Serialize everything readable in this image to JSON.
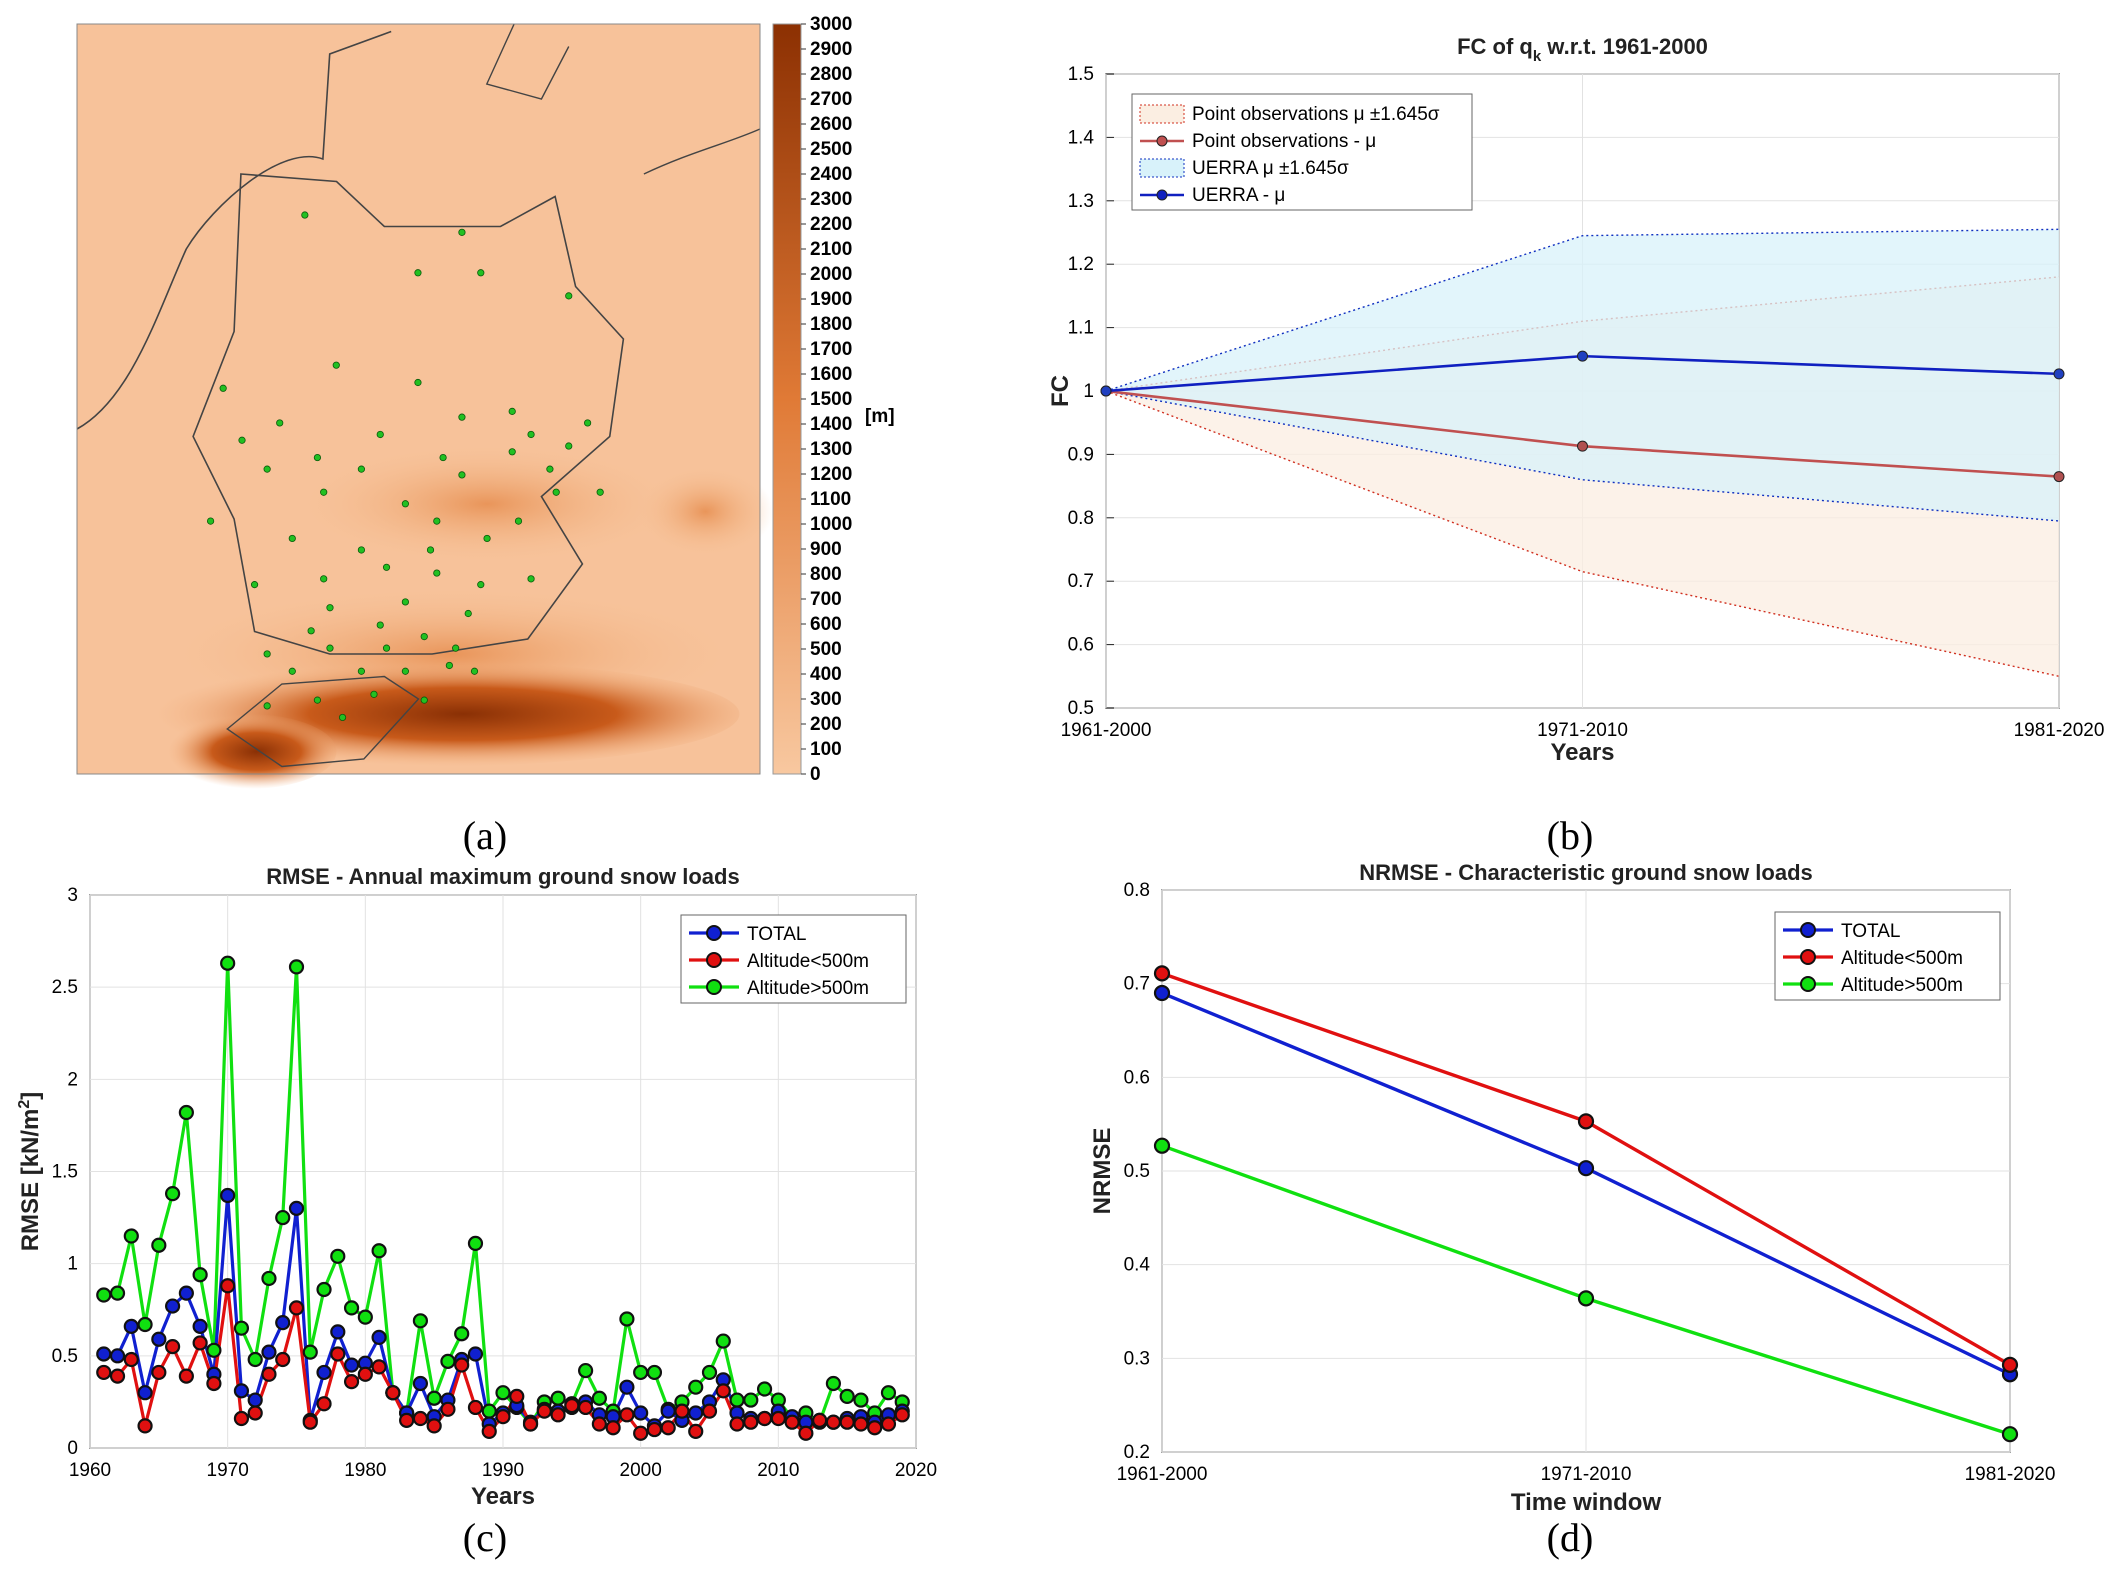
{
  "panel_labels": [
    "(a)",
    "(b)",
    "(c)",
    "(d)"
  ],
  "colors": {
    "total": "#1020d0",
    "low": "#e01010",
    "high": "#10e010",
    "uerra_fill": "#d8f2fa",
    "obs_fill": "#fbeee2",
    "uerra_line": "#1020c0",
    "obs_line": "#c05050"
  },
  "chart_data": [
    {
      "id": "a",
      "type": "heatmap",
      "title": "",
      "colorbar": {
        "ticks": [
          "3000",
          "2900",
          "2800",
          "2700",
          "2600",
          "2500",
          "2400",
          "2300",
          "2200",
          "2100",
          "2000",
          "1900",
          "1800",
          "1700",
          "1600",
          "1500",
          "1400",
          "1300",
          "1200",
          "1100",
          "1000",
          "900",
          "800",
          "700",
          "600",
          "500",
          "400",
          "300",
          "200",
          "100",
          "0"
        ],
        "unit": "[m]",
        "range": [
          0,
          3000
        ],
        "colors": [
          "#f7c59a",
          "#9c3a05"
        ]
      },
      "stations": [
        [
          0.33,
          0.11
        ],
        [
          0.58,
          0.14
        ],
        [
          0.51,
          0.21
        ],
        [
          0.61,
          0.21
        ],
        [
          0.75,
          0.25
        ],
        [
          0.38,
          0.37
        ],
        [
          0.51,
          0.4
        ],
        [
          0.66,
          0.45
        ],
        [
          0.2,
          0.41
        ],
        [
          0.29,
          0.47
        ],
        [
          0.58,
          0.46
        ],
        [
          0.69,
          0.49
        ],
        [
          0.78,
          0.47
        ],
        [
          0.8,
          0.59
        ],
        [
          0.23,
          0.5
        ],
        [
          0.35,
          0.53
        ],
        [
          0.45,
          0.49
        ],
        [
          0.55,
          0.53
        ],
        [
          0.66,
          0.52
        ],
        [
          0.72,
          0.55
        ],
        [
          0.27,
          0.55
        ],
        [
          0.42,
          0.55
        ],
        [
          0.58,
          0.56
        ],
        [
          0.75,
          0.51
        ],
        [
          0.18,
          0.64
        ],
        [
          0.36,
          0.59
        ],
        [
          0.49,
          0.61
        ],
        [
          0.73,
          0.59
        ],
        [
          0.67,
          0.64
        ],
        [
          0.54,
          0.64
        ],
        [
          0.31,
          0.67
        ],
        [
          0.42,
          0.69
        ],
        [
          0.62,
          0.67
        ],
        [
          0.53,
          0.69
        ],
        [
          0.46,
          0.72
        ],
        [
          0.36,
          0.74
        ],
        [
          0.54,
          0.73
        ],
        [
          0.25,
          0.75
        ],
        [
          0.37,
          0.79
        ],
        [
          0.49,
          0.78
        ],
        [
          0.61,
          0.75
        ],
        [
          0.69,
          0.74
        ],
        [
          0.45,
          0.82
        ],
        [
          0.59,
          0.8
        ],
        [
          0.34,
          0.83
        ],
        [
          0.52,
          0.84
        ],
        [
          0.27,
          0.87
        ],
        [
          0.37,
          0.86
        ],
        [
          0.46,
          0.86
        ],
        [
          0.57,
          0.86
        ],
        [
          0.31,
          0.9
        ],
        [
          0.42,
          0.9
        ],
        [
          0.49,
          0.9
        ],
        [
          0.56,
          0.89
        ],
        [
          0.6,
          0.9
        ],
        [
          0.35,
          0.95
        ],
        [
          0.44,
          0.94
        ],
        [
          0.52,
          0.95
        ],
        [
          0.27,
          0.96
        ],
        [
          0.39,
          0.98
        ]
      ]
    },
    {
      "id": "b",
      "type": "line",
      "title": "FC of q",
      "title_sub": "k",
      "title_rest": " w.r.t. 1961-2000",
      "xlabel": "Years",
      "ylabel": "FC",
      "categories": [
        "1961-2000",
        "1971-2010",
        "1981-2020"
      ],
      "ylim": [
        0.5,
        1.5
      ],
      "yticks": [
        "0.5",
        "0.6",
        "0.7",
        "0.8",
        "0.9",
        "1",
        "1.1",
        "1.2",
        "1.3",
        "1.4",
        "1.5"
      ],
      "grid": true,
      "legend_position": "top-left",
      "legend": [
        "Point observations μ ±1.645σ",
        "Point observations - μ",
        "UERRA μ ±1.645σ",
        "UERRA - μ"
      ],
      "obs_mean": [
        1.0,
        0.913,
        0.865
      ],
      "obs_upper": [
        1.0,
        1.11,
        1.18
      ],
      "obs_lower": [
        1.0,
        0.715,
        0.55
      ],
      "uerra_mean": [
        1.0,
        1.055,
        1.027
      ],
      "uerra_upper": [
        1.0,
        1.245,
        1.255
      ],
      "uerra_lower": [
        1.0,
        0.86,
        0.795
      ]
    },
    {
      "id": "c",
      "type": "line",
      "title": "RMSE - Annual maximum ground snow loads",
      "xlabel": "Years",
      "ylabel": "RMSE [kN/m",
      "ylabel_sup": "2",
      "ylabel_end": "]",
      "xlim": [
        1960,
        2020
      ],
      "xticks": [
        "1960",
        "1970",
        "1980",
        "1990",
        "2000",
        "2010",
        "2020"
      ],
      "ylim": [
        0,
        3
      ],
      "yticks": [
        "0",
        "0.5",
        "1",
        "1.5",
        "2",
        "2.5",
        "3"
      ],
      "grid": true,
      "legend_position": "top-right",
      "x_start": 1961,
      "series": [
        {
          "name": "TOTAL",
          "key": "total",
          "values": [
            0.51,
            0.5,
            0.66,
            0.3,
            0.59,
            0.77,
            0.84,
            0.66,
            0.4,
            1.37,
            0.31,
            0.26,
            0.52,
            0.68,
            1.3,
            0.15,
            0.41,
            0.63,
            0.45,
            0.46,
            0.6,
            0.3,
            0.19,
            0.35,
            0.17,
            0.26,
            0.48,
            0.51,
            0.13,
            0.19,
            0.23,
            0.14,
            0.21,
            0.2,
            0.22,
            0.25,
            0.18,
            0.17,
            0.33,
            0.19,
            0.12,
            0.2,
            0.15,
            0.19,
            0.25,
            0.37,
            0.19,
            0.16,
            0.16,
            0.2,
            0.17,
            0.14,
            0.15,
            0.14,
            0.16,
            0.17,
            0.14,
            0.18,
            0.2
          ]
        },
        {
          "name": "Altitude<500m",
          "key": "low",
          "values": [
            0.41,
            0.39,
            0.48,
            0.12,
            0.41,
            0.55,
            0.39,
            0.57,
            0.35,
            0.88,
            0.16,
            0.19,
            0.4,
            0.48,
            0.76,
            0.14,
            0.24,
            0.51,
            0.36,
            0.4,
            0.44,
            0.3,
            0.15,
            0.16,
            0.12,
            0.21,
            0.45,
            0.22,
            0.09,
            0.17,
            0.28,
            0.13,
            0.2,
            0.18,
            0.23,
            0.22,
            0.13,
            0.11,
            0.18,
            0.08,
            0.1,
            0.11,
            0.2,
            0.09,
            0.2,
            0.31,
            0.13,
            0.14,
            0.16,
            0.16,
            0.14,
            0.08,
            0.15,
            0.14,
            0.14,
            0.13,
            0.11,
            0.13,
            0.18
          ]
        },
        {
          "name": "Altitude>500m",
          "key": "high",
          "values": [
            0.83,
            0.84,
            1.15,
            0.67,
            1.1,
            1.38,
            1.82,
            0.94,
            0.53,
            2.63,
            0.65,
            0.48,
            0.92,
            1.25,
            2.61,
            0.52,
            0.86,
            1.04,
            0.76,
            0.71,
            1.07,
            0.3,
            0.19,
            0.69,
            0.27,
            0.47,
            0.62,
            1.11,
            0.2,
            0.3,
            0.22,
            0.13,
            0.25,
            0.27,
            0.24,
            0.42,
            0.27,
            0.2,
            0.7,
            0.41,
            0.41,
            0.21,
            0.25,
            0.33,
            0.41,
            0.58,
            0.26,
            0.26,
            0.32,
            0.26,
            0.16,
            0.19,
            0.14,
            0.35,
            0.28,
            0.26,
            0.19,
            0.3,
            0.25
          ]
        }
      ]
    },
    {
      "id": "d",
      "type": "line",
      "title": "NRMSE - Characteristic ground snow loads",
      "xlabel": "Time window",
      "ylabel": "NRMSE",
      "categories": [
        "1961-2000",
        "1971-2010",
        "1981-2020"
      ],
      "ylim": [
        0.2,
        0.8
      ],
      "yticks": [
        "0.2",
        "0.3",
        "0.4",
        "0.5",
        "0.6",
        "0.7",
        "0.8"
      ],
      "grid": true,
      "legend_position": "top-right",
      "series": [
        {
          "name": "TOTAL",
          "key": "total",
          "values": [
            0.69,
            0.503,
            0.283
          ]
        },
        {
          "name": "Altitude<500m",
          "key": "low",
          "values": [
            0.711,
            0.553,
            0.293
          ]
        },
        {
          "name": "Altitude>500m",
          "key": "high",
          "values": [
            0.527,
            0.364,
            0.219
          ]
        }
      ]
    }
  ]
}
